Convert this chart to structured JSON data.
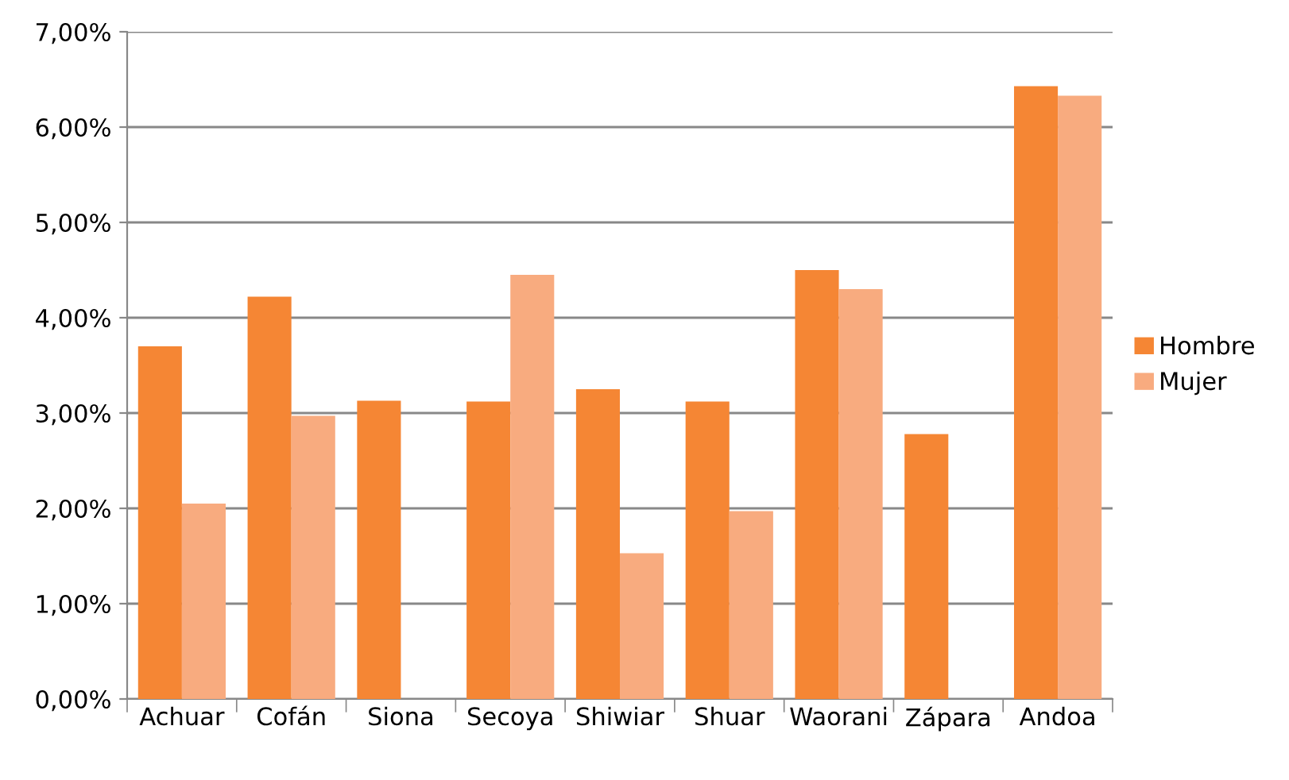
{
  "chart_data": {
    "type": "bar",
    "categories": [
      "Achuar",
      "Cofán",
      "Siona",
      "Secoya",
      "Shiwiar",
      "Shuar",
      "Waorani",
      "Zápara",
      "Andoa"
    ],
    "series": [
      {
        "name": "Hombre",
        "color": "#f58634",
        "values": [
          3.7,
          4.22,
          3.13,
          3.12,
          3.25,
          3.12,
          4.5,
          2.78,
          6.43
        ]
      },
      {
        "name": "Mujer",
        "color": "#f8ab7f",
        "values": [
          2.05,
          2.97,
          null,
          4.45,
          1.53,
          1.97,
          4.3,
          null,
          6.33
        ]
      }
    ],
    "ylim": [
      0,
      7
    ],
    "yticks": [
      {
        "value": 0,
        "label": "0,00%"
      },
      {
        "value": 1,
        "label": "1,00%"
      },
      {
        "value": 2,
        "label": "2,00%"
      },
      {
        "value": 3,
        "label": "3,00%"
      },
      {
        "value": 4,
        "label": "4,00%"
      },
      {
        "value": 5,
        "label": "5,00%"
      },
      {
        "value": 6,
        "label": "6,00%"
      },
      {
        "value": 7,
        "label": "7,00%"
      }
    ],
    "grid": "y",
    "legend": "right"
  }
}
